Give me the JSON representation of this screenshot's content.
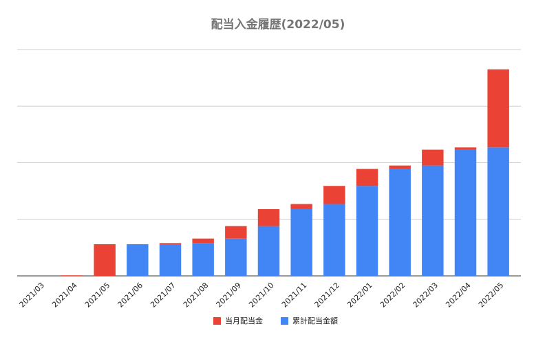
{
  "chart_data": {
    "type": "stacked_bar",
    "title": "配当入金履歴(2022/05)",
    "categories": [
      "2021/03",
      "2021/04",
      "2021/05",
      "2021/06",
      "2021/07",
      "2021/08",
      "2021/09",
      "2021/10",
      "2021/11",
      "2021/12",
      "2022/01",
      "2022/02",
      "2022/03",
      "2022/04",
      "2022/05"
    ],
    "series": [
      {
        "name": "当月配当金",
        "color": "#ea4335",
        "values": [
          0,
          1,
          56,
          0,
          2,
          8,
          22,
          30,
          9,
          32,
          30,
          6,
          28,
          4,
          138
        ]
      },
      {
        "name": "累計配当金額",
        "color": "#4285f4",
        "values": [
          0,
          0,
          0,
          56,
          56,
          58,
          66,
          88,
          118,
          127,
          159,
          189,
          195,
          223,
          227
        ]
      }
    ],
    "ylim": [
      0,
      400
    ],
    "gridlines": [
      0,
      100,
      200,
      300,
      400
    ],
    "legend": "bottom"
  }
}
